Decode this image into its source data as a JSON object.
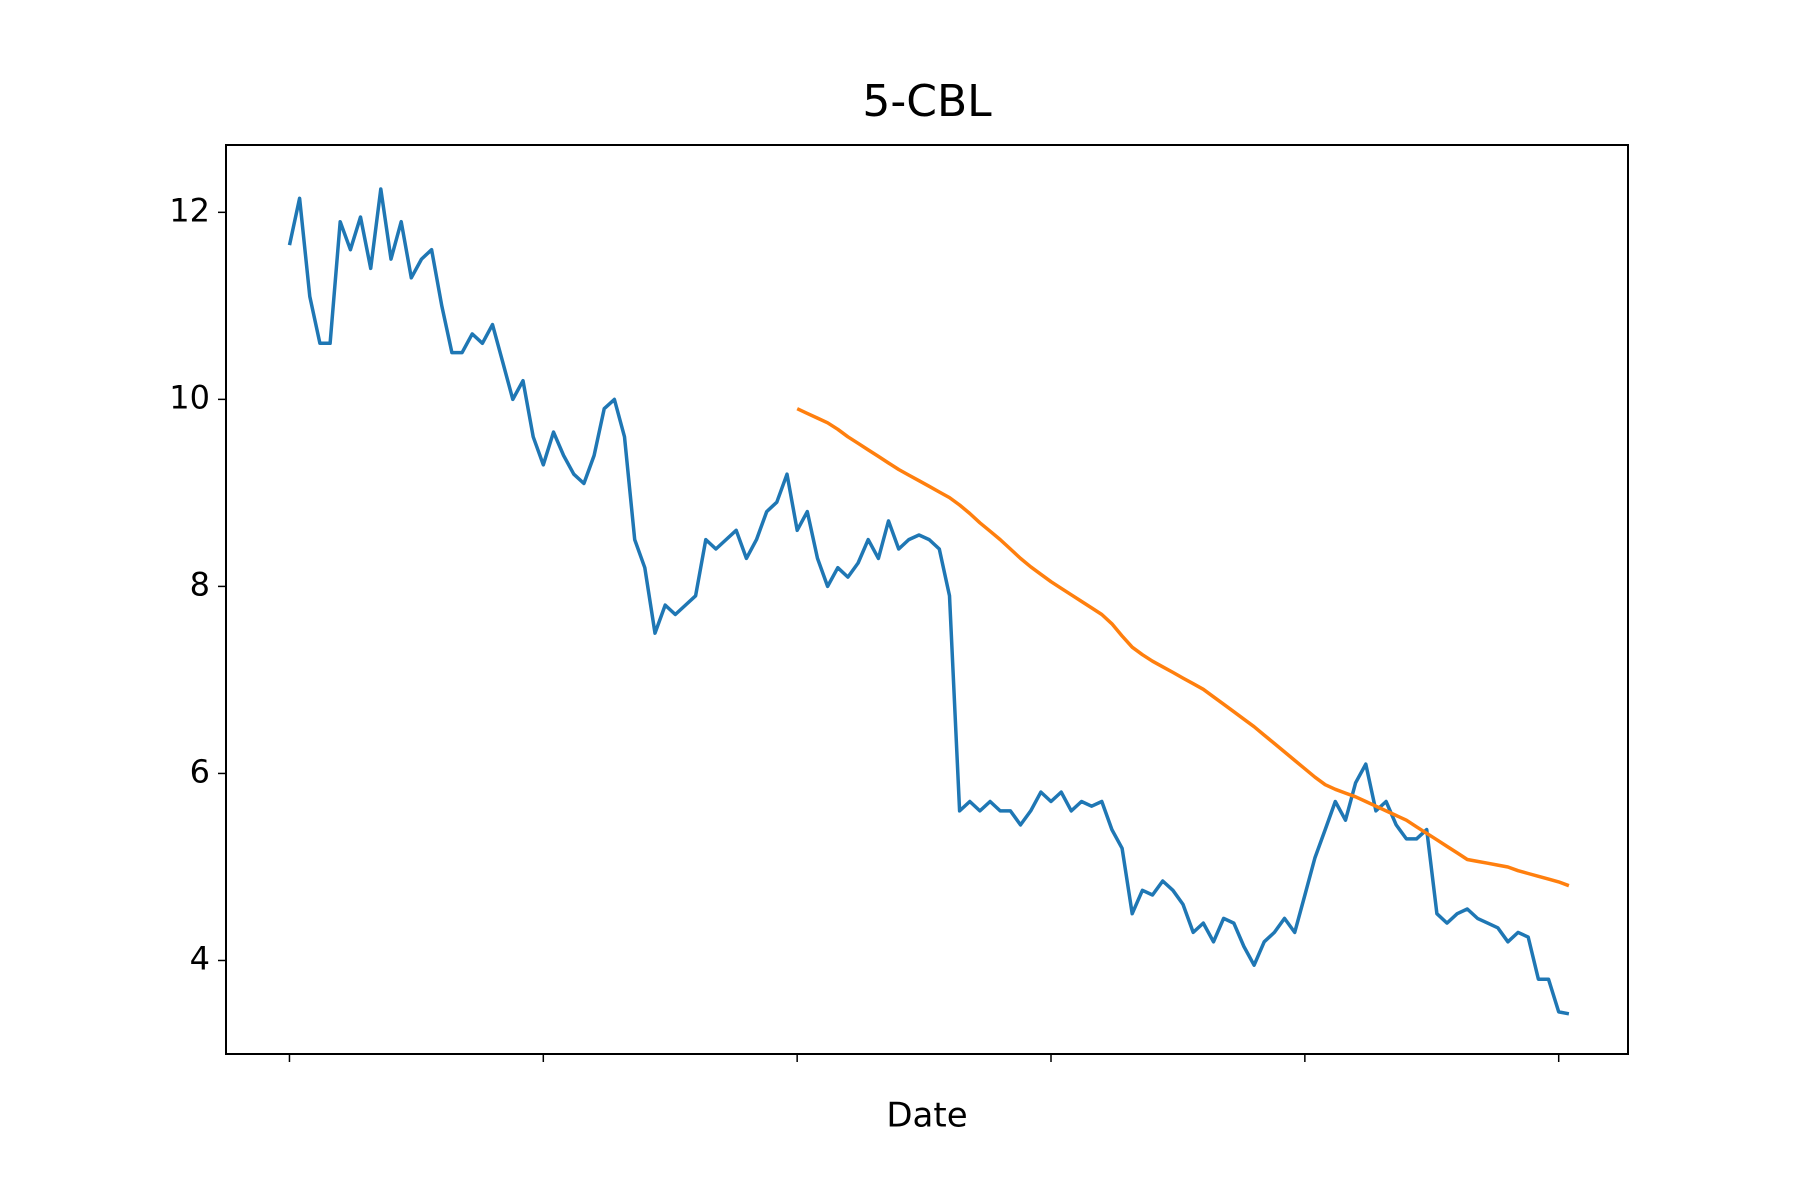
{
  "chart_data": {
    "type": "line",
    "title": "5-CBL",
    "xlabel": "Date",
    "x": [
      0,
      4,
      8,
      12,
      16,
      20,
      24,
      28,
      32,
      36,
      40,
      44,
      48,
      52,
      56,
      60,
      64,
      68,
      72,
      76,
      80,
      84,
      88,
      92,
      96,
      100,
      104,
      108,
      112,
      116,
      120,
      124,
      128,
      132,
      136,
      140,
      144,
      148,
      152,
      156,
      160,
      164,
      168,
      172,
      176,
      180,
      184,
      188,
      192,
      196,
      200,
      204,
      208,
      212,
      216,
      220,
      224,
      228,
      232,
      236,
      240,
      244,
      248,
      252,
      256,
      260,
      264,
      268,
      272,
      276,
      280,
      284,
      288,
      292,
      296,
      300,
      304,
      308,
      312,
      316,
      320,
      324,
      328,
      332,
      336,
      340,
      344,
      348,
      352,
      356,
      360,
      364,
      368,
      372,
      376,
      380,
      384,
      388,
      392,
      396,
      400,
      404,
      408,
      412,
      416,
      420,
      424,
      428,
      432,
      436,
      440,
      444,
      448,
      452,
      456,
      460,
      464,
      468,
      472,
      476,
      480,
      484,
      488,
      492,
      496,
      500,
      504
    ],
    "series": [
      {
        "color": "#1f77b4",
        "values": [
          11.65,
          12.15,
          11.1,
          10.6,
          10.6,
          11.9,
          11.6,
          11.95,
          11.4,
          12.25,
          11.5,
          11.9,
          11.3,
          11.5,
          11.6,
          11.0,
          10.5,
          10.5,
          10.7,
          10.6,
          10.8,
          10.4,
          10.0,
          10.2,
          9.6,
          9.3,
          9.65,
          9.4,
          9.2,
          9.1,
          9.4,
          9.9,
          10.0,
          9.6,
          8.5,
          8.2,
          7.5,
          7.8,
          7.7,
          7.8,
          7.9,
          8.5,
          8.4,
          8.5,
          8.6,
          8.3,
          8.5,
          8.8,
          8.9,
          9.2,
          8.6,
          8.8,
          8.3,
          8.0,
          8.2,
          8.1,
          8.25,
          8.5,
          8.3,
          8.7,
          8.4,
          8.5,
          8.55,
          8.5,
          8.4,
          7.9,
          5.6,
          5.7,
          5.6,
          5.7,
          5.6,
          5.6,
          5.45,
          5.6,
          5.8,
          5.7,
          5.8,
          5.6,
          5.7,
          5.65,
          5.7,
          5.4,
          5.2,
          4.5,
          4.75,
          4.7,
          4.85,
          4.75,
          4.6,
          4.3,
          4.4,
          4.2,
          4.45,
          4.4,
          4.15,
          3.95,
          4.2,
          4.3,
          4.45,
          4.3,
          4.7,
          5.1,
          5.4,
          5.7,
          5.5,
          5.9,
          6.1,
          5.6,
          5.7,
          5.45,
          5.3,
          5.3,
          5.4,
          4.5,
          4.4,
          4.5,
          4.55,
          4.45,
          4.4,
          4.35,
          4.2,
          4.3,
          4.25,
          3.8,
          3.8,
          3.45,
          3.43
        ]
      },
      {
        "color": "#ff7f0e",
        "values": [
          null,
          null,
          null,
          null,
          null,
          null,
          null,
          null,
          null,
          null,
          null,
          null,
          null,
          null,
          null,
          null,
          null,
          null,
          null,
          null,
          null,
          null,
          null,
          null,
          null,
          null,
          null,
          null,
          null,
          null,
          null,
          null,
          null,
          null,
          null,
          null,
          null,
          null,
          null,
          null,
          null,
          null,
          null,
          null,
          null,
          null,
          null,
          null,
          null,
          null,
          9.9,
          9.85,
          9.8,
          9.75,
          9.68,
          9.6,
          9.53,
          9.46,
          9.39,
          9.32,
          9.25,
          9.19,
          9.13,
          9.07,
          9.01,
          8.95,
          8.87,
          8.78,
          8.68,
          8.59,
          8.5,
          8.4,
          8.3,
          8.21,
          8.13,
          8.05,
          7.98,
          7.91,
          7.84,
          7.77,
          7.7,
          7.6,
          7.47,
          7.35,
          7.27,
          7.2,
          7.14,
          7.08,
          7.02,
          6.96,
          6.9,
          6.82,
          6.74,
          6.66,
          6.58,
          6.5,
          6.41,
          6.32,
          6.23,
          6.14,
          6.05,
          5.96,
          5.88,
          5.83,
          5.79,
          5.75,
          5.7,
          5.65,
          5.6,
          5.55,
          5.5,
          5.43,
          5.36,
          5.29,
          5.22,
          5.15,
          5.08,
          5.06,
          5.04,
          5.02,
          5.0,
          4.96,
          4.93,
          4.9,
          4.87,
          4.84,
          4.8
        ]
      }
    ],
    "xlim": [
      -25,
      527.3
    ],
    "xticks": [
      {
        "value": 0,
        "label": null
      },
      {
        "value": 100,
        "label": null
      },
      {
        "value": 200,
        "label": null
      },
      {
        "value": 300,
        "label": null
      },
      {
        "value": 400,
        "label": null
      },
      {
        "value": 500,
        "label": null
      }
    ],
    "ylim": [
      3.0,
      12.72
    ],
    "yticks": [
      4,
      6,
      8,
      10,
      12
    ],
    "grid": false
  }
}
